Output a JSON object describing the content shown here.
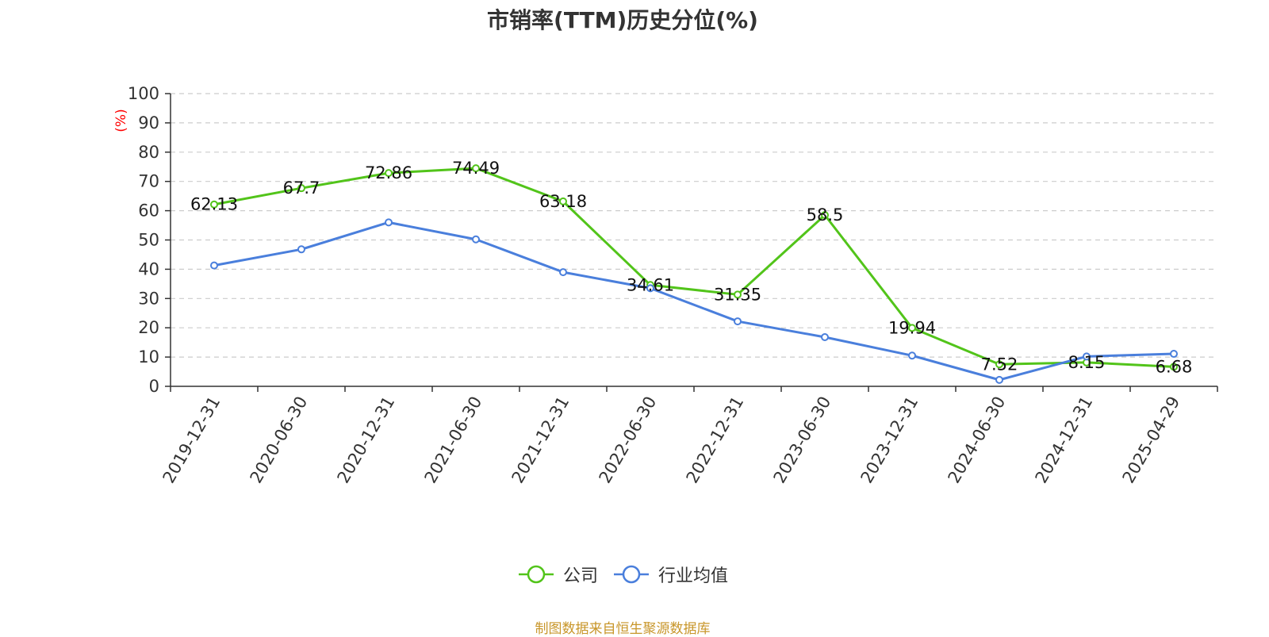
{
  "title": "市销率(TTM)历史分位(%)",
  "source": "制图数据来自恒生聚源数据库",
  "colors": {
    "company": "#52c41a",
    "industry": "#4a7fdc",
    "unit": "#ff0000"
  },
  "chart_data": {
    "type": "line",
    "title": "市销率(TTM)历史分位(%)",
    "ylabel": "(%)",
    "xlabel": "",
    "ylim": [
      0,
      100
    ],
    "yticks": [
      0,
      10,
      20,
      30,
      40,
      50,
      60,
      70,
      80,
      90,
      100
    ],
    "grid": true,
    "legend_position": "bottom-center",
    "categories": [
      "2019-12-31",
      "2020-06-30",
      "2020-12-31",
      "2021-06-30",
      "2021-12-31",
      "2022-06-30",
      "2022-12-31",
      "2023-06-30",
      "2023-12-31",
      "2024-06-30",
      "2024-12-31",
      "2025-04-29"
    ],
    "series": [
      {
        "name": "公司",
        "color": "#52c41a",
        "show_labels": true,
        "values": [
          62.13,
          67.7,
          72.86,
          74.49,
          63.18,
          34.61,
          31.35,
          58.5,
          19.94,
          7.52,
          8.15,
          6.68
        ]
      },
      {
        "name": "行业均值",
        "color": "#4a7fdc",
        "show_labels": false,
        "values": [
          41.3,
          46.8,
          56.0,
          50.2,
          39.0,
          33.5,
          22.2,
          16.8,
          10.5,
          2.2,
          10.2,
          11.1
        ]
      }
    ]
  }
}
